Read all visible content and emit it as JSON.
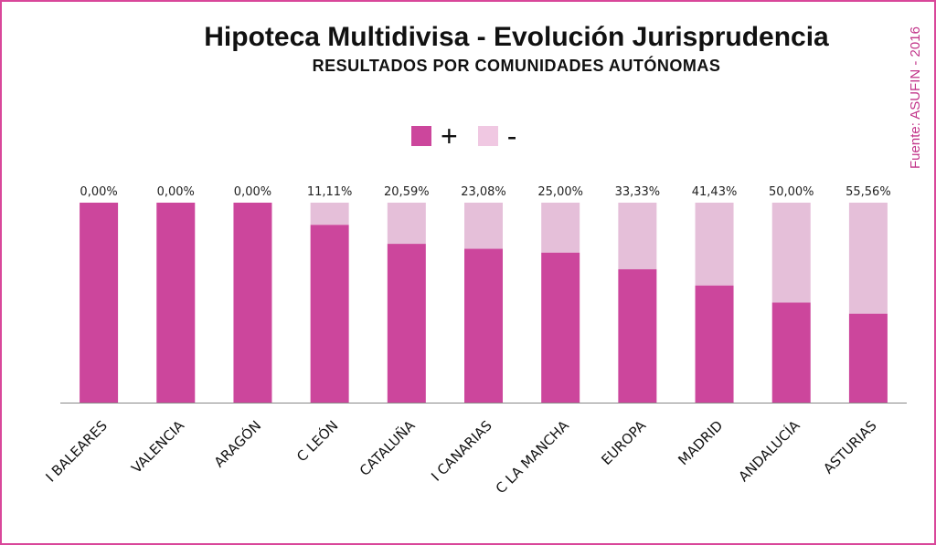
{
  "title": "Hipoteca Multidivisa - Evolución Jurisprudencia",
  "subtitle": "RESULTADOS POR COMUNIDADES AUTÓNOMAS",
  "source": "Fuente: ASUFIN - 2016",
  "legend": [
    {
      "label": "+",
      "color": "#cc469c"
    },
    {
      "label": "-",
      "color": "#f0c8e2"
    }
  ],
  "colors": {
    "positive": "#cc469c",
    "negative": "#e5bfd9",
    "border": "#d9479a",
    "source": "#c2358a"
  },
  "chart_data": {
    "type": "bar",
    "stacked": true,
    "categories": [
      "I BALEARES",
      "VALENCIA",
      "ARAGÓN",
      "C LEÓN",
      "CATALUÑA",
      "I CANARIAS",
      "C LA MANCHA",
      "EUROPA",
      "MADRID",
      "ANDALUCÍA",
      "ASTURIAS"
    ],
    "data_labels": [
      "0,00%",
      "0,00%",
      "0,00%",
      "11,11%",
      "20,59%",
      "23,08%",
      "25,00%",
      "33,33%",
      "41,43%",
      "50,00%",
      "55,56%"
    ],
    "series": [
      {
        "name": "+",
        "values": [
          100,
          100,
          100,
          88.89,
          79.41,
          76.92,
          75.0,
          66.67,
          58.57,
          50.0,
          44.44
        ]
      },
      {
        "name": "-",
        "values": [
          0,
          0,
          0,
          11.11,
          20.59,
          23.08,
          25.0,
          33.33,
          41.43,
          50.0,
          55.56
        ]
      }
    ],
    "ylim": [
      0,
      100
    ],
    "grid": false,
    "legend_position": "top-center"
  }
}
